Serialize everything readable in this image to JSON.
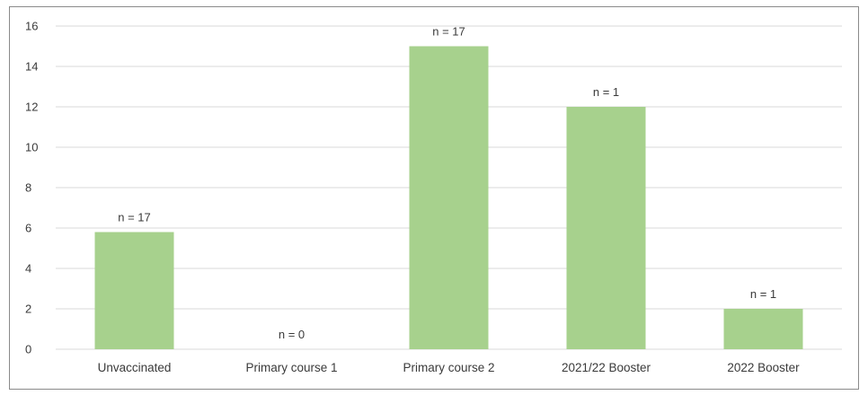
{
  "chart_data": {
    "type": "bar",
    "categories": [
      "Unvaccinated",
      "Primary course 1",
      "Primary course 2",
      "2021/22 Booster",
      "2022 Booster"
    ],
    "values": [
      5.8,
      0,
      15,
      12,
      2
    ],
    "data_labels": [
      "n = 17",
      "n = 0",
      "n = 17",
      "n = 1",
      "n = 1"
    ],
    "ylim": [
      0,
      16
    ],
    "yticks": [
      "0",
      "2",
      "4",
      "6",
      "8",
      "10",
      "12",
      "14",
      "16"
    ],
    "grid": true,
    "bar_color": "#a7d18d",
    "gridline_color": "#d9d9d9"
  }
}
